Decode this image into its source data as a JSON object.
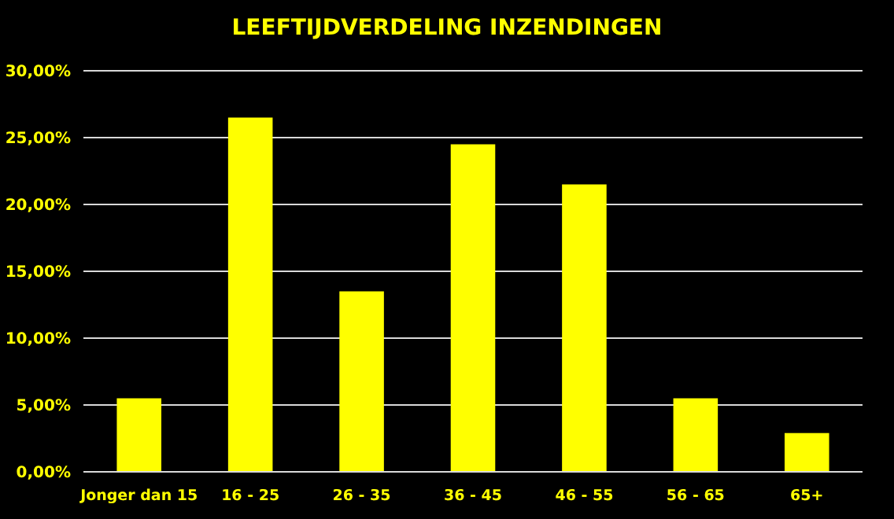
{
  "chart_data": {
    "type": "bar",
    "title": "LEEFTIJDVERDELING INZENDINGEN",
    "categories": [
      "Jonger dan 15",
      "16 - 25",
      "26 - 35",
      "36 - 45",
      "46 - 55",
      "56 - 65",
      "65+"
    ],
    "values": [
      5.5,
      26.5,
      13.5,
      24.5,
      21.5,
      5.5,
      2.9
    ],
    "color": "#ffff00",
    "ylim": [
      0,
      30
    ],
    "yticks": [
      {
        "value": 0,
        "label": "0,00%"
      },
      {
        "value": 5,
        "label": "5,00%"
      },
      {
        "value": 10,
        "label": "10,00%"
      },
      {
        "value": 15,
        "label": "15,00%"
      },
      {
        "value": 20,
        "label": "20,00%"
      },
      {
        "value": 25,
        "label": "25,00%"
      },
      {
        "value": 30,
        "label": "30,00%"
      }
    ],
    "grid": "y"
  }
}
